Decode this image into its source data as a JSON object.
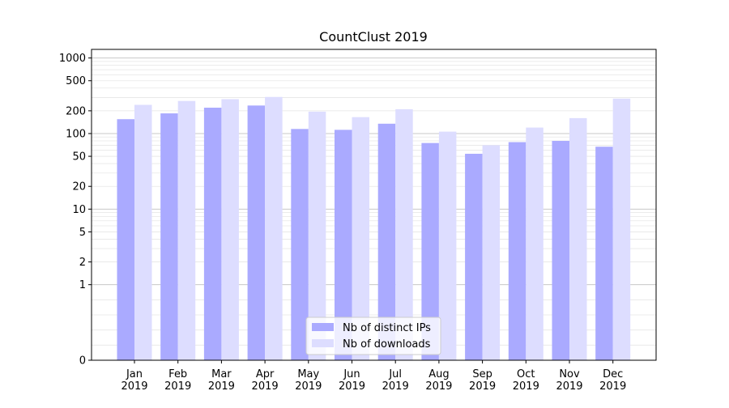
{
  "chart_data": {
    "type": "bar",
    "title": "CountClust 2019",
    "xlabel": "",
    "ylabel": "",
    "yscale": "symlog",
    "ylim": [
      0,
      1300
    ],
    "grid": true,
    "legend_position": "bottom-center",
    "categories": [
      "Jan\n2019",
      "Feb\n2019",
      "Mar\n2019",
      "Apr\n2019",
      "May\n2019",
      "Jun\n2019",
      "Jul\n2019",
      "Aug\n2019",
      "Sep\n2019",
      "Oct\n2019",
      "Nov\n2019",
      "Dec\n2019"
    ],
    "y_ticks": [
      0,
      1,
      2,
      5,
      10,
      20,
      50,
      100,
      200,
      500,
      1000
    ],
    "series": [
      {
        "name": "Nb of distinct IPs",
        "color": "#aaaaff",
        "values": [
          155,
          185,
          220,
          235,
          115,
          112,
          135,
          75,
          54,
          77,
          80,
          67
        ]
      },
      {
        "name": "Nb of downloads",
        "color": "#ddddff",
        "values": [
          240,
          270,
          285,
          305,
          195,
          165,
          210,
          106,
          70,
          120,
          160,
          290
        ]
      }
    ]
  }
}
